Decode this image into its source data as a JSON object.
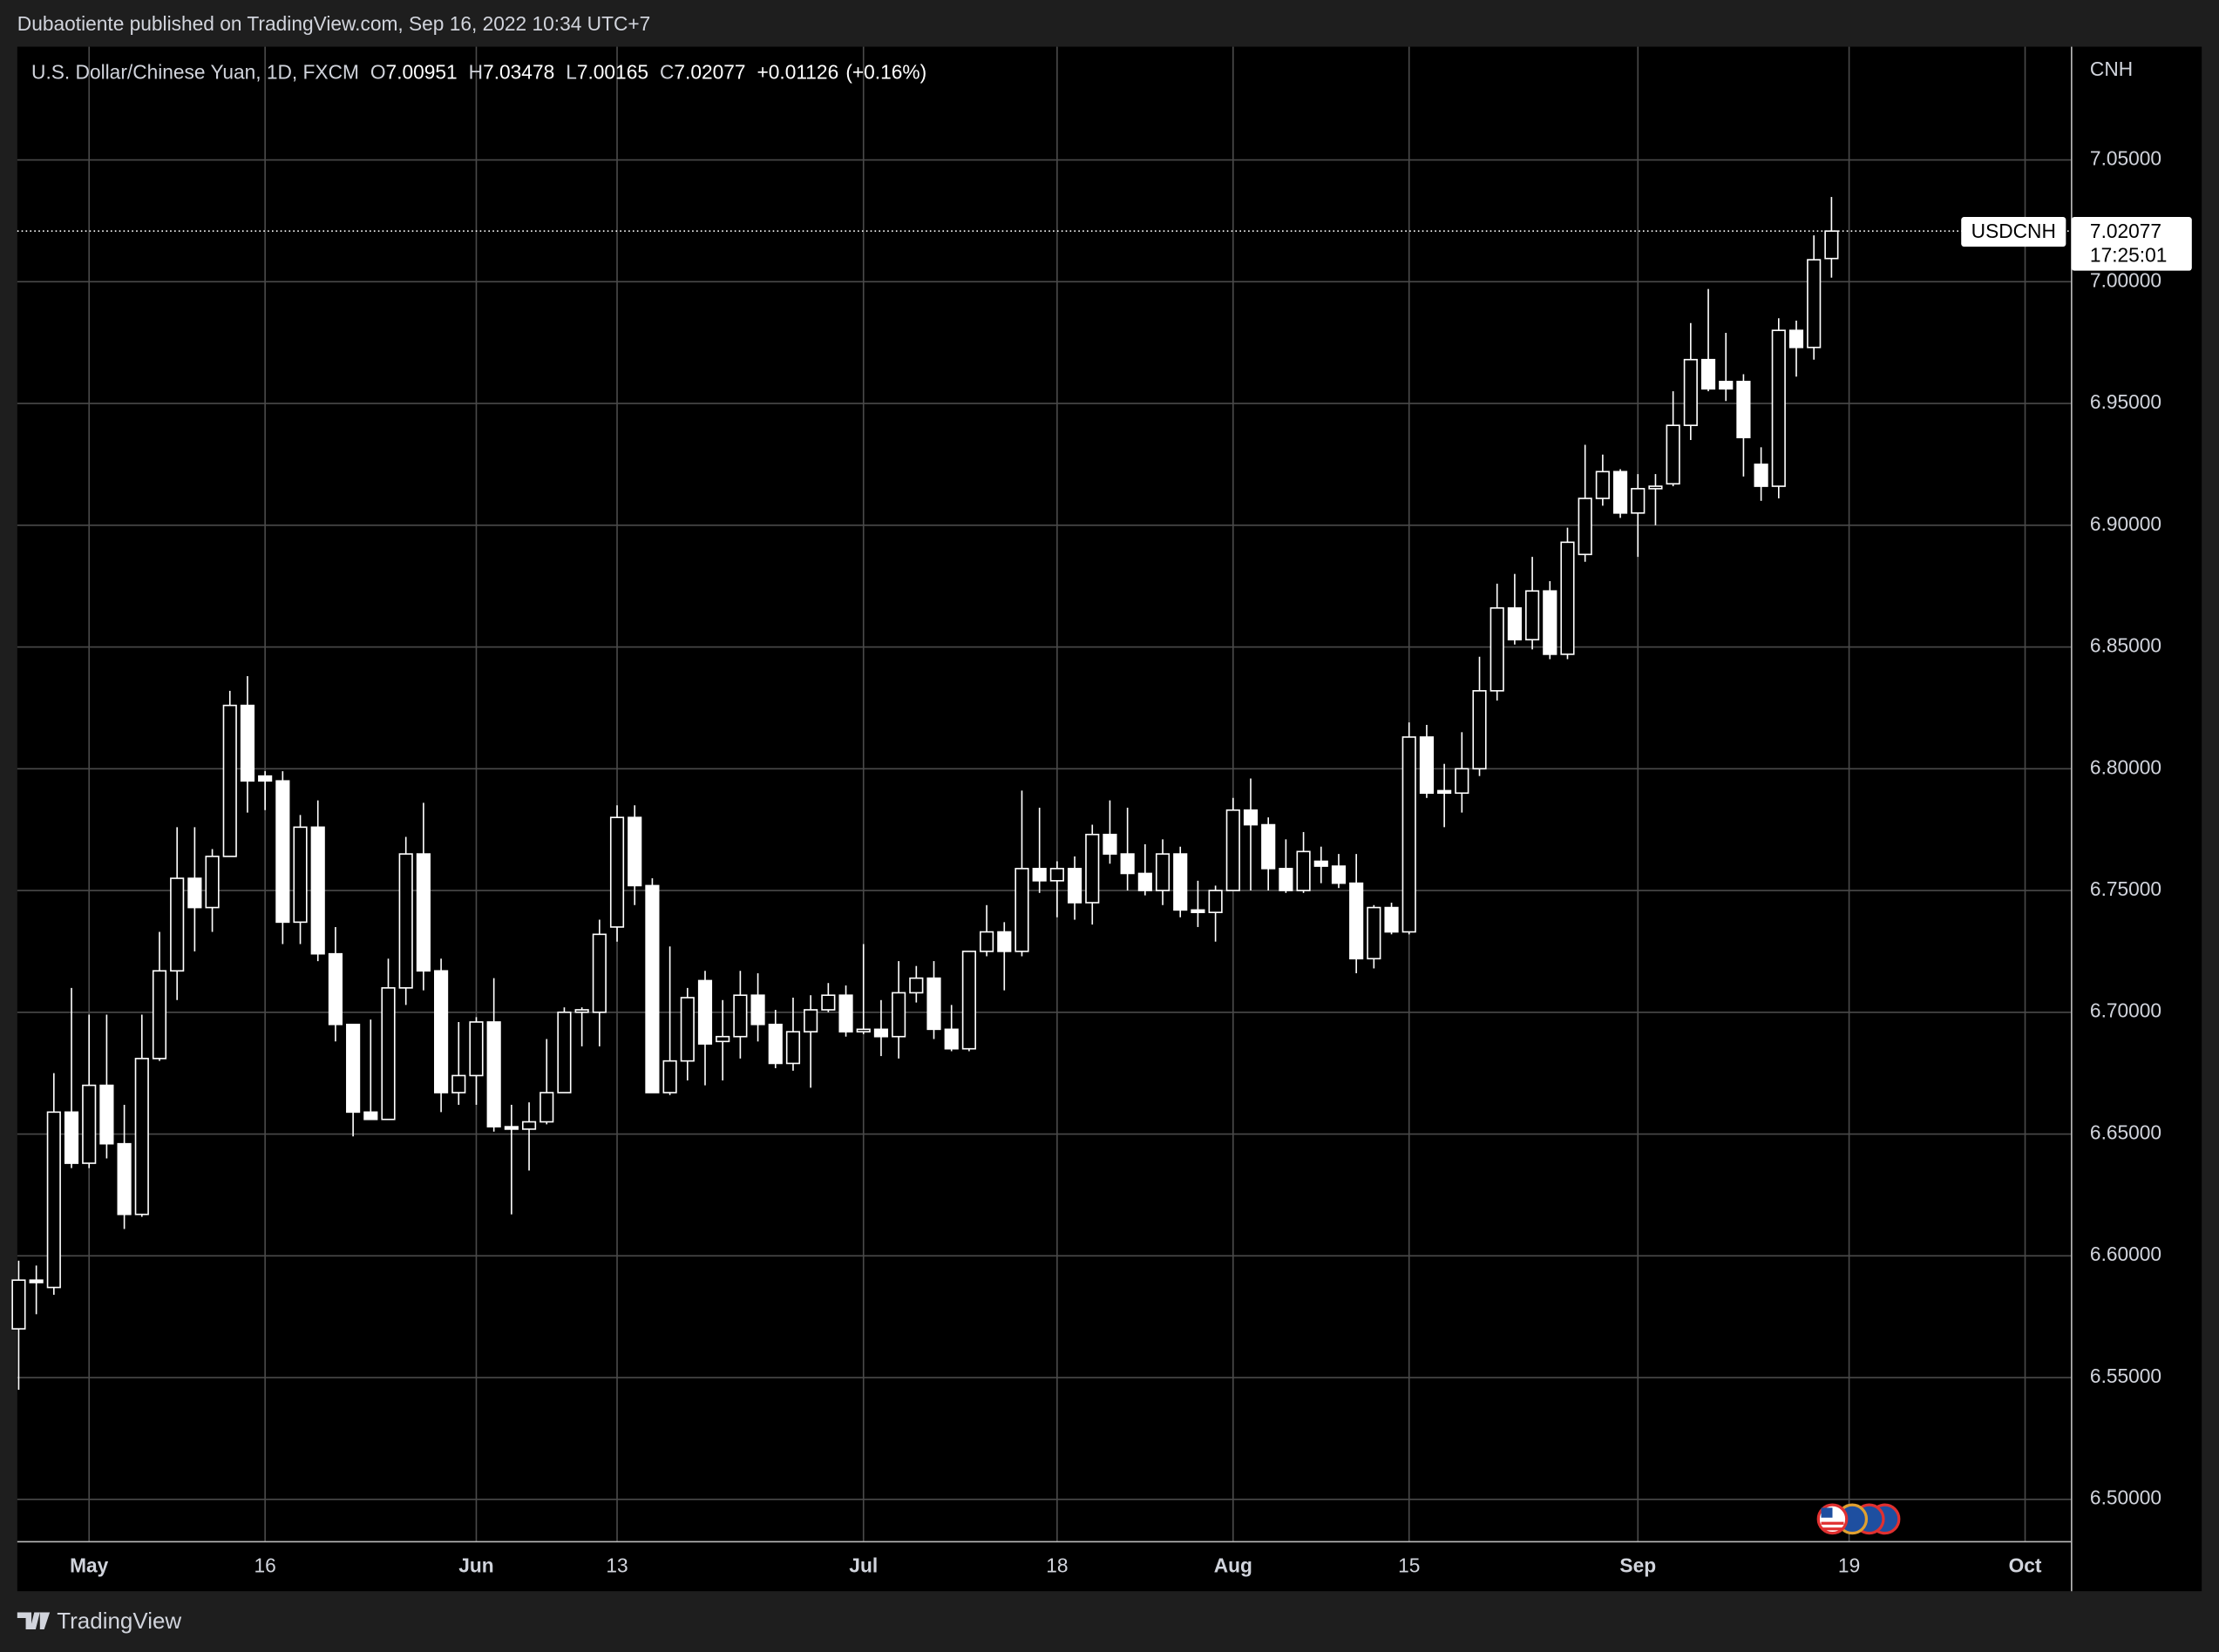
{
  "header": {
    "attribution": "Dubaotiente published on TradingView.com, Sep 16, 2022 10:34 UTC+7"
  },
  "legend": {
    "symbol": "U.S. Dollar/Chinese Yuan, 1D, FXCM",
    "open_label": "O",
    "high_label": "H",
    "low_label": "L",
    "close_label": "C",
    "change": "+0.01126",
    "change_pct": "(+0.16%)"
  },
  "chart_data": {
    "type": "candlestick",
    "currency": "CNH",
    "symbol_tag": "USDCNH",
    "countdown": "17:25:01",
    "up_color": "#000000",
    "down_color": "#ffffff",
    "wick_color": "#ffffff",
    "grid": true,
    "grid_color": "#4a4a4a",
    "open": [
      6.57,
      6.59,
      6.587,
      6.659,
      6.638,
      6.67,
      6.646,
      6.617,
      6.681,
      6.717,
      6.755,
      6.743,
      6.764,
      6.826,
      6.797,
      6.795,
      6.737,
      6.776,
      6.724,
      6.695,
      6.659,
      6.656,
      6.71,
      6.765,
      6.717,
      6.667,
      6.674,
      6.696,
      6.653,
      6.652,
      6.655,
      6.667,
      6.7,
      6.7,
      6.735,
      6.78,
      6.752,
      6.667,
      6.68,
      6.713,
      6.688,
      6.69,
      6.707,
      6.695,
      6.679,
      6.692,
      6.701,
      6.707,
      6.692,
      6.693,
      6.69,
      6.708,
      6.714,
      6.693,
      6.685,
      6.725,
      6.733,
      6.725,
      6.759,
      6.754,
      6.759,
      6.745,
      6.773,
      6.765,
      6.757,
      6.75,
      6.765,
      6.742,
      6.741,
      6.75,
      6.783,
      6.777,
      6.759,
      6.75,
      6.762,
      6.76,
      6.753,
      6.722,
      6.743,
      6.733,
      6.813,
      6.791,
      6.79,
      6.8,
      6.832,
      6.866,
      6.853,
      6.873,
      6.847,
      6.888,
      6.911,
      6.922,
      6.905,
      6.915,
      6.917,
      6.941,
      6.968,
      6.959,
      6.959,
      6.925,
      6.916,
      6.98,
      6.973,
      7.00951
    ],
    "high": [
      6.598,
      6.596,
      6.675,
      6.71,
      6.699,
      6.699,
      6.662,
      6.699,
      6.733,
      6.776,
      6.776,
      6.767,
      6.832,
      6.838,
      6.799,
      6.799,
      6.781,
      6.787,
      6.735,
      6.695,
      6.697,
      6.722,
      6.772,
      6.786,
      6.722,
      6.696,
      6.698,
      6.714,
      6.662,
      6.663,
      6.689,
      6.702,
      6.702,
      6.738,
      6.785,
      6.785,
      6.755,
      6.727,
      6.71,
      6.717,
      6.705,
      6.717,
      6.716,
      6.701,
      6.706,
      6.707,
      6.712,
      6.711,
      6.728,
      6.705,
      6.721,
      6.719,
      6.721,
      6.703,
      6.725,
      6.744,
      6.737,
      6.791,
      6.784,
      6.762,
      6.764,
      6.777,
      6.787,
      6.784,
      6.769,
      6.771,
      6.768,
      6.754,
      6.752,
      6.788,
      6.796,
      6.78,
      6.771,
      6.774,
      6.768,
      6.765,
      6.765,
      6.744,
      6.745,
      6.819,
      6.818,
      6.802,
      6.815,
      6.846,
      6.876,
      6.88,
      6.887,
      6.877,
      6.899,
      6.933,
      6.929,
      6.923,
      6.921,
      6.921,
      6.955,
      6.983,
      6.997,
      6.979,
      6.962,
      6.932,
      6.985,
      6.984,
      7.019,
      7.03478
    ],
    "low": [
      6.545,
      6.576,
      6.584,
      6.636,
      6.636,
      6.64,
      6.611,
      6.616,
      6.68,
      6.705,
      6.725,
      6.733,
      6.764,
      6.782,
      6.783,
      6.728,
      6.728,
      6.721,
      6.688,
      6.649,
      6.656,
      6.656,
      6.703,
      6.709,
      6.659,
      6.662,
      6.662,
      6.651,
      6.617,
      6.635,
      6.654,
      6.667,
      6.686,
      6.686,
      6.729,
      6.744,
      6.667,
      6.666,
      6.672,
      6.67,
      6.672,
      6.681,
      6.688,
      6.677,
      6.676,
      6.669,
      6.7,
      6.69,
      6.691,
      6.682,
      6.681,
      6.704,
      6.689,
      6.684,
      6.684,
      6.723,
      6.709,
      6.723,
      6.749,
      6.739,
      6.738,
      6.736,
      6.761,
      6.75,
      6.748,
      6.744,
      6.739,
      6.735,
      6.729,
      6.75,
      6.75,
      6.75,
      6.749,
      6.749,
      6.753,
      6.751,
      6.716,
      6.718,
      6.732,
      6.732,
      6.788,
      6.776,
      6.782,
      6.797,
      6.828,
      6.851,
      6.849,
      6.845,
      6.845,
      6.885,
      6.908,
      6.903,
      6.887,
      6.9,
      6.916,
      6.935,
      6.955,
      6.951,
      6.92,
      6.91,
      6.911,
      6.961,
      6.968,
      7.00165
    ],
    "close": [
      6.59,
      6.589,
      6.659,
      6.638,
      6.67,
      6.646,
      6.617,
      6.681,
      6.717,
      6.755,
      6.743,
      6.764,
      6.826,
      6.795,
      6.795,
      6.737,
      6.776,
      6.724,
      6.695,
      6.659,
      6.656,
      6.71,
      6.765,
      6.717,
      6.667,
      6.674,
      6.696,
      6.653,
      6.652,
      6.655,
      6.667,
      6.7,
      6.701,
      6.732,
      6.78,
      6.752,
      6.667,
      6.68,
      6.706,
      6.687,
      6.69,
      6.707,
      6.695,
      6.679,
      6.692,
      6.701,
      6.707,
      6.692,
      6.693,
      6.69,
      6.708,
      6.714,
      6.693,
      6.685,
      6.725,
      6.733,
      6.725,
      6.759,
      6.754,
      6.759,
      6.745,
      6.773,
      6.765,
      6.757,
      6.75,
      6.765,
      6.742,
      6.741,
      6.75,
      6.783,
      6.777,
      6.759,
      6.75,
      6.766,
      6.76,
      6.753,
      6.722,
      6.743,
      6.733,
      6.813,
      6.79,
      6.79,
      6.8,
      6.832,
      6.866,
      6.853,
      6.873,
      6.847,
      6.893,
      6.911,
      6.922,
      6.905,
      6.915,
      6.916,
      6.941,
      6.968,
      6.956,
      6.956,
      6.936,
      6.916,
      6.98,
      6.973,
      7.009,
      7.02077
    ],
    "xlim": [
      -0.08,
      116.64
    ],
    "xticks": [
      {
        "value": 4,
        "label": "May"
      },
      {
        "value": 14,
        "label": "16"
      },
      {
        "value": 26,
        "label": "Jun"
      },
      {
        "value": 34,
        "label": "13"
      },
      {
        "value": 48,
        "label": "Jul"
      },
      {
        "value": 59,
        "label": "18"
      },
      {
        "value": 69,
        "label": "Aug"
      },
      {
        "value": 79,
        "label": "15"
      },
      {
        "value": 92,
        "label": "Sep"
      },
      {
        "value": 104,
        "label": "19"
      },
      {
        "value": 114,
        "label": "Oct"
      }
    ],
    "ylim": [
      6.4826,
      7.0965
    ],
    "yticks": [
      {
        "value": 6.5,
        "label": "6.50000"
      },
      {
        "value": 6.55,
        "label": "6.55000"
      },
      {
        "value": 6.6,
        "label": "6.60000"
      },
      {
        "value": 6.65,
        "label": "6.65000"
      },
      {
        "value": 6.7,
        "label": "6.70000"
      },
      {
        "value": 6.75,
        "label": "6.75000"
      },
      {
        "value": 6.8,
        "label": "6.80000"
      },
      {
        "value": 6.85,
        "label": "6.85000"
      },
      {
        "value": 6.9,
        "label": "6.90000"
      },
      {
        "value": 6.95,
        "label": "6.95000"
      },
      {
        "value": 7.0,
        "label": "7.00000"
      },
      {
        "value": 7.05,
        "label": "7.05000"
      }
    ]
  },
  "footer": {
    "brand": "TradingView"
  }
}
